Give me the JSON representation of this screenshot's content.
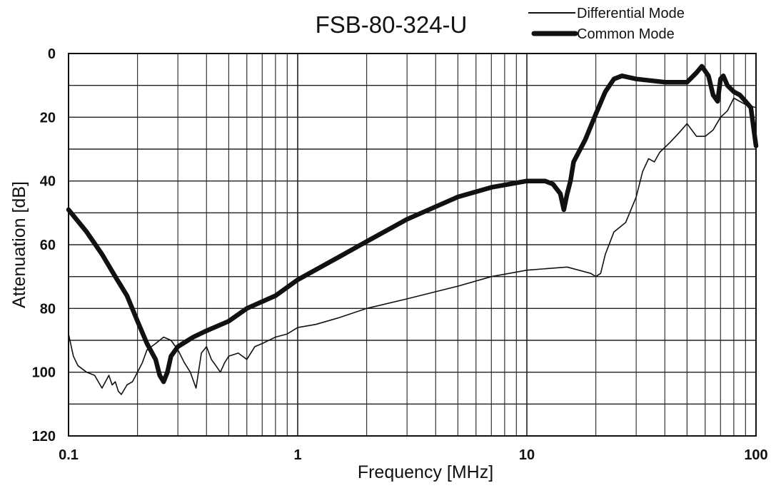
{
  "chart_data": {
    "type": "line",
    "title": "FSB-80-324-U",
    "xlabel": "Frequency [MHz]",
    "ylabel": "Attenuation [dB]",
    "xscale": "log",
    "xlim": [
      0.1,
      100
    ],
    "ylim": [
      0,
      120
    ],
    "y_inverted": true,
    "grid": true,
    "legend_position": "top-right",
    "x_tick_labels": [
      "0.1",
      "1",
      "10",
      "100"
    ],
    "x_ticks": [
      0.1,
      1,
      10,
      100
    ],
    "y_tick_labels": [
      "0",
      "20",
      "40",
      "60",
      "80",
      "100",
      "120"
    ],
    "y_ticks": [
      0,
      20,
      40,
      60,
      80,
      100,
      120
    ],
    "series": [
      {
        "name": "Differential Mode",
        "color": "#111111",
        "style": "thin",
        "x": [
          0.1,
          0.105,
          0.11,
          0.12,
          0.13,
          0.14,
          0.15,
          0.155,
          0.16,
          0.165,
          0.17,
          0.18,
          0.19,
          0.2,
          0.21,
          0.22,
          0.24,
          0.26,
          0.28,
          0.3,
          0.32,
          0.34,
          0.36,
          0.38,
          0.4,
          0.42,
          0.44,
          0.46,
          0.48,
          0.5,
          0.55,
          0.6,
          0.65,
          0.7,
          0.8,
          0.9,
          1,
          1.2,
          1.5,
          2,
          3,
          5,
          7,
          10,
          15,
          19,
          20,
          21,
          22,
          24,
          27,
          30,
          32,
          34,
          36,
          38,
          42,
          46,
          50,
          55,
          60,
          65,
          70,
          75,
          80,
          90,
          100
        ],
        "y": [
          88,
          95,
          98,
          100,
          101,
          105,
          101,
          104,
          103,
          106,
          107,
          104,
          103,
          100,
          97,
          93,
          91,
          89,
          90,
          93,
          97,
          100,
          105,
          94,
          92,
          96,
          98,
          100,
          97,
          95,
          94,
          96,
          92,
          91,
          89,
          88,
          86,
          85,
          83,
          80,
          77,
          73,
          70,
          68,
          67,
          69,
          70,
          69,
          63,
          56,
          53,
          45,
          37,
          33,
          34,
          31,
          28,
          25,
          22,
          26,
          26,
          24,
          20,
          18,
          14,
          16,
          17
        ]
      },
      {
        "name": "Common Mode",
        "color": "#111111",
        "style": "thick",
        "x": [
          0.1,
          0.12,
          0.14,
          0.16,
          0.18,
          0.2,
          0.22,
          0.24,
          0.25,
          0.26,
          0.27,
          0.28,
          0.3,
          0.35,
          0.4,
          0.5,
          0.6,
          0.8,
          1,
          1.5,
          2,
          3,
          5,
          7,
          10,
          12,
          13,
          14,
          14.5,
          15,
          15.5,
          16,
          18,
          20,
          22,
          24,
          26,
          30,
          40,
          50,
          55,
          58,
          62,
          65,
          68,
          70,
          72,
          75,
          80,
          85,
          90,
          95,
          100
        ],
        "y": [
          49,
          56,
          63,
          70,
          76,
          84,
          91,
          96,
          101,
          103,
          100,
          95,
          92,
          89,
          87,
          84,
          80,
          76,
          71,
          64,
          59,
          52,
          45,
          42,
          40,
          40,
          41,
          44,
          49,
          44,
          40,
          34,
          27,
          19,
          12,
          8,
          7,
          8,
          9,
          9,
          6,
          4,
          7,
          13,
          15,
          8,
          7,
          10,
          12,
          13,
          15,
          17,
          29
        ]
      }
    ]
  }
}
